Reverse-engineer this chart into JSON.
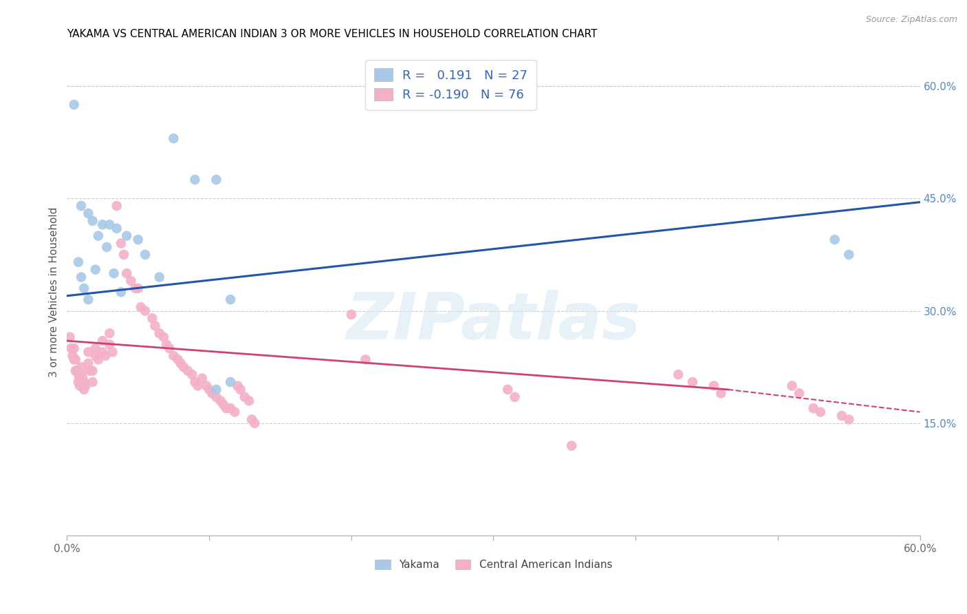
{
  "title": "YAKAMA VS CENTRAL AMERICAN INDIAN 3 OR MORE VEHICLES IN HOUSEHOLD CORRELATION CHART",
  "source": "Source: ZipAtlas.com",
  "ylabel": "3 or more Vehicles in Household",
  "xlim": [
    0.0,
    0.6
  ],
  "ylim": [
    0.0,
    0.65
  ],
  "x_tick_positions": [
    0.0,
    0.1,
    0.2,
    0.3,
    0.4,
    0.5,
    0.6
  ],
  "x_tick_labels": [
    "0.0%",
    "",
    "",
    "",
    "",
    "",
    "60.0%"
  ],
  "y_ticks_right": [
    0.15,
    0.3,
    0.45,
    0.6
  ],
  "y_tick_labels_right": [
    "15.0%",
    "30.0%",
    "45.0%",
    "60.0%"
  ],
  "watermark": "ZIPatlas",
  "blue_color": "#a8c8e8",
  "pink_color": "#f4b0c8",
  "line_blue_color": "#2255aa",
  "line_pink_color": "#d04070",
  "blue_line": {
    "x0": 0.0,
    "y0": 0.32,
    "x1": 0.6,
    "y1": 0.445
  },
  "pink_line_solid": {
    "x0": 0.0,
    "y0": 0.26,
    "x1": 0.465,
    "y1": 0.195
  },
  "pink_line_dashed": {
    "x0": 0.465,
    "y0": 0.195,
    "x1": 0.6,
    "y1": 0.165
  },
  "yakama_points": [
    [
      0.005,
      0.575
    ],
    [
      0.075,
      0.53
    ],
    [
      0.09,
      0.475
    ],
    [
      0.105,
      0.475
    ],
    [
      0.01,
      0.44
    ],
    [
      0.015,
      0.43
    ],
    [
      0.018,
      0.42
    ],
    [
      0.025,
      0.415
    ],
    [
      0.03,
      0.415
    ],
    [
      0.035,
      0.41
    ],
    [
      0.022,
      0.4
    ],
    [
      0.042,
      0.4
    ],
    [
      0.05,
      0.395
    ],
    [
      0.028,
      0.385
    ],
    [
      0.055,
      0.375
    ],
    [
      0.008,
      0.365
    ],
    [
      0.02,
      0.355
    ],
    [
      0.033,
      0.35
    ],
    [
      0.01,
      0.345
    ],
    [
      0.065,
      0.345
    ],
    [
      0.012,
      0.33
    ],
    [
      0.038,
      0.325
    ],
    [
      0.015,
      0.315
    ],
    [
      0.115,
      0.315
    ],
    [
      0.115,
      0.205
    ],
    [
      0.105,
      0.195
    ],
    [
      0.54,
      0.395
    ],
    [
      0.55,
      0.375
    ]
  ],
  "central_american_points": [
    [
      0.002,
      0.265
    ],
    [
      0.003,
      0.25
    ],
    [
      0.004,
      0.24
    ],
    [
      0.005,
      0.25
    ],
    [
      0.005,
      0.235
    ],
    [
      0.006,
      0.235
    ],
    [
      0.006,
      0.22
    ],
    [
      0.007,
      0.22
    ],
    [
      0.008,
      0.215
    ],
    [
      0.008,
      0.205
    ],
    [
      0.009,
      0.21
    ],
    [
      0.009,
      0.2
    ],
    [
      0.01,
      0.225
    ],
    [
      0.01,
      0.215
    ],
    [
      0.011,
      0.21
    ],
    [
      0.012,
      0.205
    ],
    [
      0.012,
      0.195
    ],
    [
      0.013,
      0.2
    ],
    [
      0.015,
      0.245
    ],
    [
      0.015,
      0.23
    ],
    [
      0.016,
      0.22
    ],
    [
      0.018,
      0.22
    ],
    [
      0.018,
      0.205
    ],
    [
      0.02,
      0.25
    ],
    [
      0.02,
      0.24
    ],
    [
      0.022,
      0.235
    ],
    [
      0.025,
      0.26
    ],
    [
      0.025,
      0.245
    ],
    [
      0.027,
      0.24
    ],
    [
      0.03,
      0.27
    ],
    [
      0.03,
      0.255
    ],
    [
      0.032,
      0.245
    ],
    [
      0.035,
      0.44
    ],
    [
      0.038,
      0.39
    ],
    [
      0.04,
      0.375
    ],
    [
      0.042,
      0.35
    ],
    [
      0.045,
      0.34
    ],
    [
      0.048,
      0.33
    ],
    [
      0.05,
      0.33
    ],
    [
      0.052,
      0.305
    ],
    [
      0.055,
      0.3
    ],
    [
      0.06,
      0.29
    ],
    [
      0.062,
      0.28
    ],
    [
      0.065,
      0.27
    ],
    [
      0.068,
      0.265
    ],
    [
      0.07,
      0.255
    ],
    [
      0.072,
      0.25
    ],
    [
      0.075,
      0.24
    ],
    [
      0.078,
      0.235
    ],
    [
      0.08,
      0.23
    ],
    [
      0.082,
      0.225
    ],
    [
      0.085,
      0.22
    ],
    [
      0.088,
      0.215
    ],
    [
      0.09,
      0.205
    ],
    [
      0.092,
      0.2
    ],
    [
      0.095,
      0.21
    ],
    [
      0.098,
      0.2
    ],
    [
      0.1,
      0.195
    ],
    [
      0.102,
      0.19
    ],
    [
      0.105,
      0.185
    ],
    [
      0.108,
      0.18
    ],
    [
      0.11,
      0.175
    ],
    [
      0.112,
      0.17
    ],
    [
      0.115,
      0.17
    ],
    [
      0.118,
      0.165
    ],
    [
      0.12,
      0.2
    ],
    [
      0.122,
      0.195
    ],
    [
      0.125,
      0.185
    ],
    [
      0.128,
      0.18
    ],
    [
      0.13,
      0.155
    ],
    [
      0.132,
      0.15
    ],
    [
      0.2,
      0.295
    ],
    [
      0.21,
      0.235
    ],
    [
      0.31,
      0.195
    ],
    [
      0.315,
      0.185
    ],
    [
      0.43,
      0.215
    ],
    [
      0.44,
      0.205
    ],
    [
      0.455,
      0.2
    ],
    [
      0.46,
      0.19
    ],
    [
      0.51,
      0.2
    ],
    [
      0.515,
      0.19
    ],
    [
      0.525,
      0.17
    ],
    [
      0.53,
      0.165
    ],
    [
      0.545,
      0.16
    ],
    [
      0.55,
      0.155
    ],
    [
      0.355,
      0.12
    ]
  ]
}
